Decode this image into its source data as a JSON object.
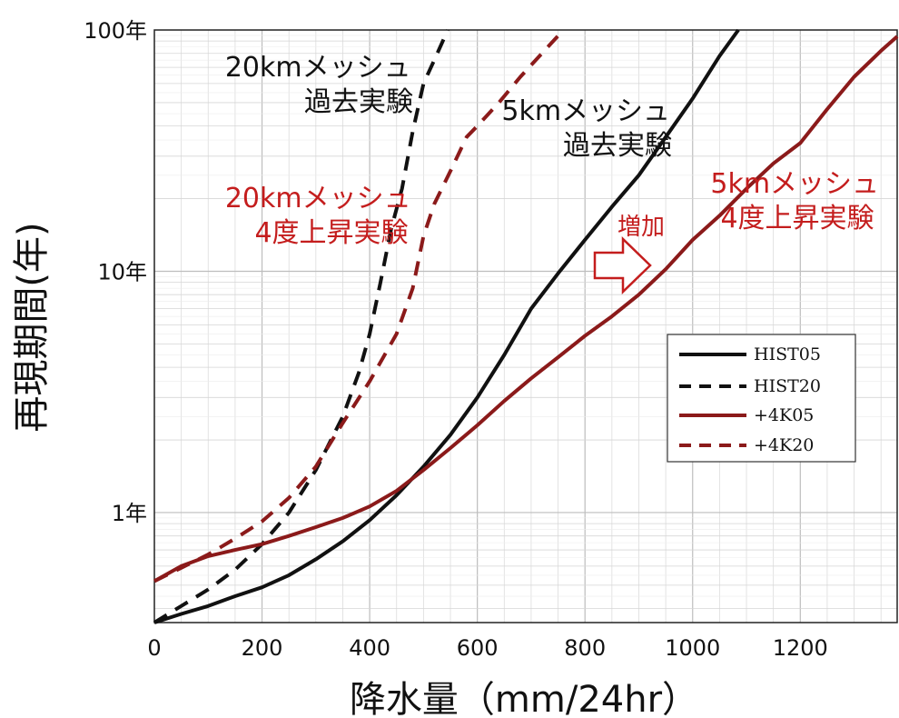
{
  "chart_data": {
    "type": "line",
    "title": "",
    "xlabel": "降水量（mm/24hr）",
    "ylabel": "再現期間(年)",
    "xlim": [
      0,
      1380
    ],
    "ylim": [
      0.35,
      100
    ],
    "y_scale": "log",
    "grid": true,
    "x_ticks": [
      {
        "value": 0,
        "label": "0"
      },
      {
        "value": 200,
        "label": "200"
      },
      {
        "value": 400,
        "label": "400"
      },
      {
        "value": 600,
        "label": "600"
      },
      {
        "value": 800,
        "label": "800"
      },
      {
        "value": 1000,
        "label": "1000"
      },
      {
        "value": 1200,
        "label": "1200"
      }
    ],
    "y_ticks": [
      {
        "value": 1,
        "label": "1年"
      },
      {
        "value": 10,
        "label": "10年"
      },
      {
        "value": 100,
        "label": "100年"
      }
    ],
    "legend": {
      "position": "lower-right",
      "entries": [
        {
          "name": "HIST05",
          "color": "#111111",
          "dash": false
        },
        {
          "name": "HIST20",
          "color": "#111111",
          "dash": true
        },
        {
          "name": "+4K05",
          "color": "#8b1a1a",
          "dash": false
        },
        {
          "name": "+4K20",
          "color": "#8b1a1a",
          "dash": true
        }
      ]
    },
    "series": [
      {
        "name": "HIST05",
        "color": "#111111",
        "dash": false,
        "points": [
          [
            0,
            0.35
          ],
          [
            50,
            0.38
          ],
          [
            100,
            0.41
          ],
          [
            150,
            0.45
          ],
          [
            200,
            0.49
          ],
          [
            250,
            0.55
          ],
          [
            300,
            0.64
          ],
          [
            350,
            0.76
          ],
          [
            400,
            0.93
          ],
          [
            450,
            1.18
          ],
          [
            500,
            1.55
          ],
          [
            550,
            2.1
          ],
          [
            600,
            3.0
          ],
          [
            650,
            4.5
          ],
          [
            700,
            7.0
          ],
          [
            750,
            9.8
          ],
          [
            800,
            13.5
          ],
          [
            850,
            18.5
          ],
          [
            900,
            25
          ],
          [
            950,
            36
          ],
          [
            1000,
            52
          ],
          [
            1050,
            78
          ],
          [
            1085,
            100
          ]
        ]
      },
      {
        "name": "HIST20",
        "color": "#111111",
        "dash": true,
        "points": [
          [
            0,
            0.35
          ],
          [
            50,
            0.41
          ],
          [
            100,
            0.48
          ],
          [
            150,
            0.58
          ],
          [
            200,
            0.74
          ],
          [
            250,
            1.0
          ],
          [
            300,
            1.5
          ],
          [
            350,
            2.5
          ],
          [
            380,
            3.8
          ],
          [
            400,
            5.5
          ],
          [
            420,
            9
          ],
          [
            440,
            15
          ],
          [
            460,
            22
          ],
          [
            480,
            38
          ],
          [
            500,
            60
          ],
          [
            520,
            75
          ],
          [
            545,
            100
          ]
        ]
      },
      {
        "name": "+4K05",
        "color": "#8b1a1a",
        "dash": false,
        "points": [
          [
            0,
            0.52
          ],
          [
            50,
            0.6
          ],
          [
            100,
            0.66
          ],
          [
            150,
            0.7
          ],
          [
            200,
            0.74
          ],
          [
            250,
            0.8
          ],
          [
            300,
            0.87
          ],
          [
            350,
            0.95
          ],
          [
            400,
            1.06
          ],
          [
            450,
            1.23
          ],
          [
            500,
            1.5
          ],
          [
            550,
            1.85
          ],
          [
            600,
            2.3
          ],
          [
            650,
            2.9
          ],
          [
            700,
            3.6
          ],
          [
            750,
            4.4
          ],
          [
            800,
            5.4
          ],
          [
            850,
            6.5
          ],
          [
            900,
            8.0
          ],
          [
            950,
            10.2
          ],
          [
            1000,
            13.5
          ],
          [
            1050,
            17
          ],
          [
            1100,
            22
          ],
          [
            1150,
            28
          ],
          [
            1200,
            34
          ],
          [
            1250,
            47
          ],
          [
            1300,
            64
          ],
          [
            1350,
            82
          ],
          [
            1380,
            94
          ]
        ]
      },
      {
        "name": "+4K20",
        "color": "#8b1a1a",
        "dash": true,
        "points": [
          [
            0,
            0.52
          ],
          [
            50,
            0.59
          ],
          [
            100,
            0.67
          ],
          [
            150,
            0.78
          ],
          [
            200,
            0.92
          ],
          [
            250,
            1.15
          ],
          [
            300,
            1.55
          ],
          [
            350,
            2.35
          ],
          [
            400,
            3.5
          ],
          [
            450,
            5.5
          ],
          [
            480,
            8.5
          ],
          [
            500,
            14
          ],
          [
            520,
            19
          ],
          [
            550,
            26
          ],
          [
            580,
            36
          ],
          [
            600,
            40
          ],
          [
            640,
            50
          ],
          [
            680,
            64
          ],
          [
            720,
            80
          ],
          [
            760,
            100
          ]
        ]
      }
    ],
    "annotations": [
      {
        "lines": [
          "20kmメッシュ",
          "過去実験"
        ],
        "color": "black"
      },
      {
        "lines": [
          "5kmメッシュ",
          "過去実験"
        ],
        "color": "black"
      },
      {
        "lines": [
          "20kmメッシュ",
          "4度上昇実験"
        ],
        "color": "red"
      },
      {
        "lines": [
          "5kmメッシュ",
          "4度上昇実験"
        ],
        "color": "red"
      },
      {
        "lines": [
          "増加"
        ],
        "color": "red"
      }
    ]
  }
}
